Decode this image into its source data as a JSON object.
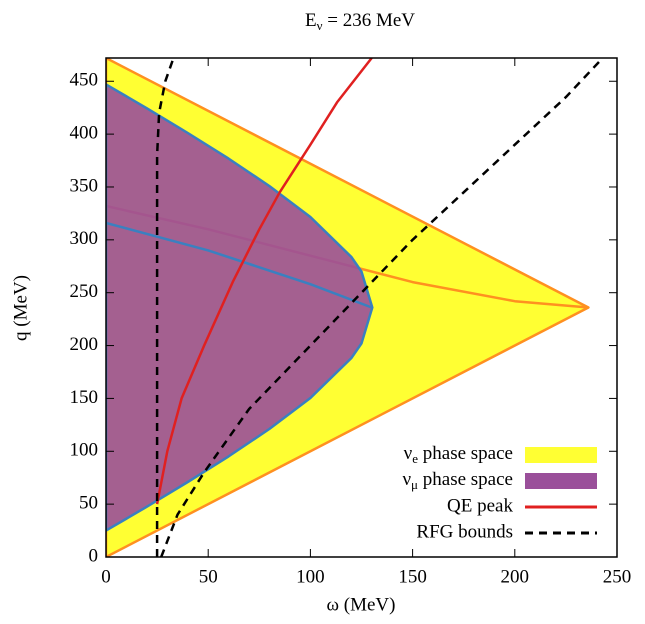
{
  "chart_data": {
    "type": "line",
    "title": "E_ν = 236 MeV",
    "xlabel": "ω (MeV)",
    "ylabel": "q (MeV)",
    "xlim": [
      0,
      250
    ],
    "ylim": [
      0,
      472
    ],
    "xticks": [
      0,
      50,
      100,
      150,
      200,
      250
    ],
    "yticks": [
      0,
      50,
      100,
      150,
      200,
      250,
      300,
      350,
      400,
      450
    ],
    "legend": "lower right",
    "series": [
      {
        "name": "ν_e phase space",
        "fill": "#ffff33",
        "color": "#ff9020",
        "x": [
          0,
          236,
          0
        ],
        "values": [
          0,
          236,
          472
        ]
      },
      {
        "color": "#ff9020",
        "x": [
          0,
          50,
          100,
          150,
          200,
          236
        ],
        "values": [
          332,
          310,
          285,
          260,
          242,
          236
        ]
      },
      {
        "name": "ν_μ phase space",
        "fill": "#9a4f9a",
        "color": "#3a80c0",
        "x": [
          0,
          20,
          40,
          60,
          80,
          100,
          120,
          125,
          130.3,
          125,
          120,
          100,
          80,
          60,
          40,
          20,
          0
        ],
        "values": [
          25,
          47.6,
          70.9,
          95.2,
          121.2,
          150.4,
          188.1,
          202,
          236,
          270,
          283.9,
          321.6,
          350.8,
          376.8,
          401.1,
          424.4,
          447
        ]
      },
      {
        "color": "#3a80c0",
        "x": [
          0,
          50,
          100,
          130
        ],
        "values": [
          316,
          290,
          258,
          236
        ]
      },
      {
        "name": "QE peak",
        "color": "#e02020",
        "x": [
          25,
          30,
          37,
          48,
          62,
          75,
          85,
          100,
          113,
          130
        ],
        "values": [
          50,
          100,
          150,
          200,
          260,
          310,
          345,
          390,
          430,
          472
        ]
      },
      {
        "name": "RFG bounds",
        "color": "#000000",
        "dashed": true,
        "x": [
          27,
          35,
          48,
          70,
          100,
          125,
          150,
          175,
          200,
          225,
          243
        ],
        "values": [
          0,
          40,
          80,
          140,
          200,
          250,
          300,
          345,
          390,
          435,
          472
        ]
      },
      {
        "color": "#000000",
        "dashed": true,
        "x": [
          25,
          25,
          26,
          29,
          33
        ],
        "values": [
          0,
          380,
          420,
          450,
          472
        ]
      }
    ]
  }
}
